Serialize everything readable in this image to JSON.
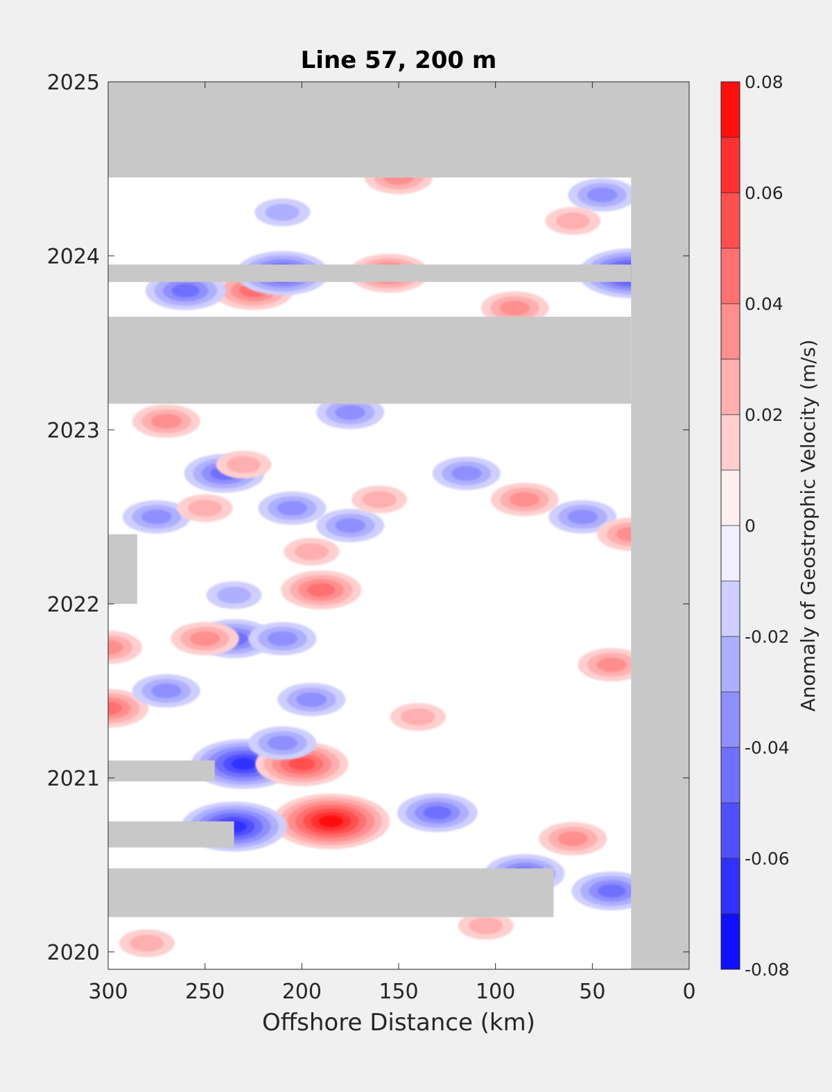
{
  "chart_data": {
    "type": "heatmap",
    "title": "Line 57, 200 m",
    "xlabel": "Offshore Distance (km)",
    "ylabel": "",
    "xlim": [
      300,
      0
    ],
    "x_reversed": true,
    "ylim": [
      2019.9,
      2025
    ],
    "xticks": [
      "300",
      "250",
      "200",
      "150",
      "100",
      "50",
      "0"
    ],
    "yticks": [
      "2020",
      "2021",
      "2022",
      "2023",
      "2024",
      "2025"
    ],
    "colorbar": {
      "label": "Anomaly of Geostrophic Velocity (m/s)",
      "range": [
        -0.08,
        0.08
      ],
      "step": 0.01,
      "ticks": [
        "-0.08",
        "-0.06",
        "-0.04",
        "-0.02",
        "0",
        "0.02",
        "0.04",
        "0.06",
        "0.08"
      ],
      "colormap": "blue-white-red",
      "low_color": "#0000ff",
      "mid_color": "#ffffff",
      "high_color": "#ff0000"
    },
    "missing_color": "#c8c8c8",
    "missing_data": [
      {
        "x": [
          300,
          0
        ],
        "y": [
          2024.45,
          2025
        ]
      },
      {
        "x": [
          30,
          0
        ],
        "y": [
          2019.9,
          2025
        ]
      },
      {
        "x": [
          300,
          30
        ],
        "y": [
          2023.85,
          2023.95
        ]
      },
      {
        "x": [
          300,
          30
        ],
        "y": [
          2023.15,
          2023.65
        ]
      },
      {
        "x": [
          300,
          285
        ],
        "y": [
          2022.0,
          2022.4
        ]
      },
      {
        "x": [
          300,
          245
        ],
        "y": [
          2020.98,
          2021.1
        ]
      },
      {
        "x": [
          300,
          235
        ],
        "y": [
          2020.6,
          2020.75
        ]
      },
      {
        "x": [
          300,
          70
        ],
        "y": [
          2020.2,
          2020.48
        ]
      }
    ],
    "anomalies": [
      {
        "x": 185,
        "y": 2020.75,
        "value": 0.07
      },
      {
        "x": 235,
        "y": 2020.72,
        "value": -0.065
      },
      {
        "x": 230,
        "y": 2021.08,
        "value": -0.06
      },
      {
        "x": 200,
        "y": 2021.08,
        "value": 0.055
      },
      {
        "x": 40,
        "y": 2020.35,
        "value": -0.045
      },
      {
        "x": 85,
        "y": 2020.45,
        "value": -0.04
      },
      {
        "x": 130,
        "y": 2020.8,
        "value": -0.04
      },
      {
        "x": 190,
        "y": 2022.08,
        "value": 0.04
      },
      {
        "x": 300,
        "y": 2021.4,
        "value": 0.04
      },
      {
        "x": 300,
        "y": 2021.75,
        "value": 0.035
      },
      {
        "x": 210,
        "y": 2021.2,
        "value": -0.035
      },
      {
        "x": 235,
        "y": 2021.8,
        "value": -0.04
      },
      {
        "x": 270,
        "y": 2021.5,
        "value": -0.03
      },
      {
        "x": 195,
        "y": 2021.45,
        "value": -0.035
      },
      {
        "x": 210,
        "y": 2021.8,
        "value": -0.03
      },
      {
        "x": 250,
        "y": 2021.8,
        "value": 0.035
      },
      {
        "x": 40,
        "y": 2021.65,
        "value": 0.035
      },
      {
        "x": 275,
        "y": 2022.5,
        "value": -0.03
      },
      {
        "x": 240,
        "y": 2022.75,
        "value": -0.04
      },
      {
        "x": 230,
        "y": 2022.8,
        "value": 0.025
      },
      {
        "x": 175,
        "y": 2022.45,
        "value": -0.035
      },
      {
        "x": 160,
        "y": 2022.6,
        "value": 0.025
      },
      {
        "x": 115,
        "y": 2022.75,
        "value": -0.035
      },
      {
        "x": 85,
        "y": 2022.6,
        "value": 0.035
      },
      {
        "x": 55,
        "y": 2022.5,
        "value": -0.03
      },
      {
        "x": 30,
        "y": 2022.4,
        "value": 0.03
      },
      {
        "x": 250,
        "y": 2022.55,
        "value": 0.025
      },
      {
        "x": 205,
        "y": 2022.55,
        "value": -0.03
      },
      {
        "x": 195,
        "y": 2022.3,
        "value": 0.025
      },
      {
        "x": 235,
        "y": 2022.05,
        "value": -0.025
      },
      {
        "x": 175,
        "y": 2023.1,
        "value": -0.03
      },
      {
        "x": 270,
        "y": 2023.05,
        "value": 0.03
      },
      {
        "x": 225,
        "y": 2023.8,
        "value": 0.045
      },
      {
        "x": 260,
        "y": 2023.8,
        "value": -0.04
      },
      {
        "x": 210,
        "y": 2023.9,
        "value": -0.055
      },
      {
        "x": 155,
        "y": 2023.9,
        "value": 0.045
      },
      {
        "x": 90,
        "y": 2023.7,
        "value": 0.035
      },
      {
        "x": 30,
        "y": 2023.9,
        "value": -0.06
      },
      {
        "x": 45,
        "y": 2024.35,
        "value": -0.03
      },
      {
        "x": 150,
        "y": 2024.45,
        "value": 0.035
      },
      {
        "x": 210,
        "y": 2024.25,
        "value": -0.025
      },
      {
        "x": 60,
        "y": 2024.2,
        "value": 0.025
      },
      {
        "x": 105,
        "y": 2020.15,
        "value": 0.025
      },
      {
        "x": 280,
        "y": 2020.05,
        "value": 0.025
      },
      {
        "x": 140,
        "y": 2021.35,
        "value": 0.02
      },
      {
        "x": 60,
        "y": 2020.65,
        "value": 0.03
      }
    ]
  }
}
